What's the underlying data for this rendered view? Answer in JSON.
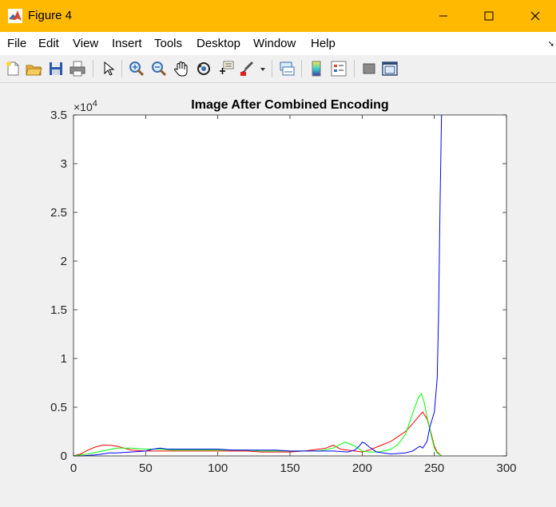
{
  "window": {
    "title": "Figure 4"
  },
  "menu": {
    "items": [
      "File",
      "Edit",
      "View",
      "Insert",
      "Tools",
      "Desktop",
      "Window",
      "Help"
    ]
  },
  "toolbar": {
    "icons": [
      "new-figure-icon",
      "open-file-icon",
      "save-icon",
      "print-icon",
      "pointer-icon",
      "zoom-in-icon",
      "zoom-out-icon",
      "pan-hand-icon",
      "rotate-3d-icon",
      "data-cursor-icon",
      "brush-icon",
      "brush-dropdown-icon",
      "link-plot-icon",
      "colorbar-icon",
      "legend-icon",
      "hide-plot-tools-icon",
      "show-plot-tools-icon"
    ]
  },
  "colors": {
    "titlebar": "#ffb900",
    "series_red": "#ff0000",
    "series_green": "#00ff00",
    "series_blue": "#0000ff"
  },
  "chart_data": {
    "type": "line",
    "title": "Image After Combined Encoding",
    "xlabel": "",
    "ylabel": "",
    "y_exponent_label": "×10",
    "y_exponent_power": "4",
    "xlim": [
      0,
      300
    ],
    "ylim": [
      0,
      3.5
    ],
    "xticks": [
      0,
      50,
      100,
      150,
      200,
      250,
      300
    ],
    "yticks": [
      0,
      0.5,
      1,
      1.5,
      2,
      2.5,
      3,
      3.5
    ],
    "xtick_labels": [
      "0",
      "50",
      "100",
      "150",
      "200",
      "250",
      "300"
    ],
    "ytick_labels": [
      "0",
      "0.5",
      "1",
      "1.5",
      "2",
      "2.5",
      "3",
      "3.5"
    ],
    "grid": false,
    "series": [
      {
        "color": "#ff0000",
        "x": [
          0,
          5,
          10,
          15,
          20,
          25,
          30,
          35,
          40,
          50,
          60,
          70,
          80,
          90,
          100,
          110,
          120,
          130,
          140,
          150,
          160,
          170,
          175,
          180,
          185,
          190,
          195,
          200,
          205,
          210,
          215,
          220,
          225,
          230,
          235,
          240,
          242,
          245,
          248,
          250,
          252,
          255
        ],
        "y": [
          0,
          0.02,
          0.06,
          0.09,
          0.11,
          0.11,
          0.1,
          0.08,
          0.06,
          0.05,
          0.05,
          0.05,
          0.05,
          0.05,
          0.05,
          0.05,
          0.05,
          0.04,
          0.04,
          0.04,
          0.05,
          0.07,
          0.08,
          0.11,
          0.07,
          0.06,
          0.05,
          0.04,
          0.06,
          0.09,
          0.12,
          0.15,
          0.2,
          0.25,
          0.33,
          0.42,
          0.45,
          0.38,
          0.22,
          0.1,
          0.04,
          0
        ]
      },
      {
        "color": "#00ff00",
        "x": [
          0,
          5,
          10,
          20,
          30,
          40,
          50,
          60,
          70,
          80,
          90,
          100,
          110,
          120,
          130,
          140,
          150,
          160,
          170,
          180,
          185,
          188,
          192,
          195,
          200,
          205,
          210,
          215,
          220,
          225,
          230,
          233,
          236,
          239,
          241,
          243,
          245,
          248,
          250,
          252,
          255
        ],
        "y": [
          0,
          0.01,
          0.02,
          0.05,
          0.08,
          0.08,
          0.07,
          0.07,
          0.06,
          0.06,
          0.06,
          0.06,
          0.06,
          0.06,
          0.05,
          0.05,
          0.05,
          0.05,
          0.05,
          0.08,
          0.12,
          0.14,
          0.12,
          0.1,
          0.05,
          0.04,
          0.04,
          0.05,
          0.07,
          0.12,
          0.22,
          0.35,
          0.48,
          0.6,
          0.64,
          0.55,
          0.4,
          0.2,
          0.08,
          0.03,
          0
        ]
      },
      {
        "color": "#0000ff",
        "x": [
          0,
          5,
          10,
          15,
          20,
          25,
          30,
          40,
          50,
          55,
          60,
          65,
          70,
          80,
          90,
          100,
          110,
          120,
          130,
          140,
          150,
          160,
          170,
          180,
          190,
          195,
          198,
          200,
          202,
          205,
          210,
          220,
          230,
          235,
          238,
          240,
          242,
          245,
          247,
          250,
          252,
          253,
          254,
          255
        ],
        "y": [
          0,
          0,
          0.005,
          0.01,
          0.02,
          0.03,
          0.03,
          0.04,
          0.05,
          0.07,
          0.08,
          0.07,
          0.07,
          0.07,
          0.07,
          0.07,
          0.06,
          0.06,
          0.06,
          0.06,
          0.05,
          0.05,
          0.05,
          0.05,
          0.04,
          0.06,
          0.1,
          0.14,
          0.13,
          0.09,
          0.04,
          0.02,
          0.03,
          0.05,
          0.08,
          0.1,
          0.08,
          0.15,
          0.3,
          0.45,
          0.8,
          1.5,
          2.6,
          3.5
        ]
      }
    ]
  }
}
